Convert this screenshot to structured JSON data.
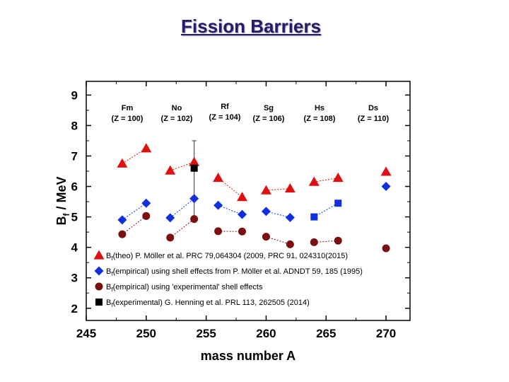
{
  "page": {
    "title": "Fission Barriers"
  },
  "chart_data": {
    "type": "scatter",
    "xlabel": "mass number A",
    "ylabel_main": "B",
    "ylabel_sub": "f",
    "ylabel_rest": " /  MeV",
    "xlim": [
      245,
      272
    ],
    "ylim": [
      1.6,
      9.45
    ],
    "xticks": [
      245,
      250,
      255,
      260,
      265,
      270
    ],
    "yticks": [
      2,
      3,
      4,
      5,
      6,
      7,
      8,
      9
    ],
    "elements": [
      {
        "name": "Fm",
        "z": "(Z = 100)",
        "x": 249.5
      },
      {
        "name": "No",
        "z": "(Z = 102)",
        "x": 254.2
      },
      {
        "name": "Rf",
        "z": "(Z = 104)",
        "x": 259.0
      },
      {
        "name": "Sg",
        "z": "(Z = 106)",
        "x": 264.0
      },
      {
        "name": "Hs",
        "z": "(Z = 108)",
        "x": 268.6
      },
      {
        "name": "Ds",
        "z": "(Z = 110)",
        "x": 273.2
      }
    ],
    "series": [
      {
        "name": "theo",
        "marker": "triangle",
        "color": "#e01010",
        "legend_prefix": "B",
        "legend_sub": "f",
        "legend_text": "(theo) P. Möller et al. PRC 79,064304 (2009, PRC 91, 024310(2015)",
        "groups": [
          [
            [
              248,
              6.75
            ],
            [
              250,
              7.25
            ]
          ],
          [
            [
              252,
              6.52
            ],
            [
              254,
              6.8
            ]
          ],
          [
            [
              256,
              6.28
            ],
            [
              258,
              5.65
            ]
          ],
          [
            [
              260,
              5.87
            ],
            [
              262,
              5.93
            ]
          ],
          [
            [
              264,
              6.15
            ],
            [
              266,
              6.28
            ]
          ],
          [
            [
              270,
              6.48
            ]
          ]
        ]
      },
      {
        "name": "empirical-shell",
        "marker": "diamond",
        "color": "#1030e0",
        "legend_prefix": "B",
        "legend_sub": "f",
        "legend_text": "(empirical) using shell effects from  P. Möller et al. ADNDT 59, 185 (1995)",
        "groups": [
          [
            [
              248,
              4.9
            ],
            [
              250,
              5.45
            ]
          ],
          [
            [
              252,
              4.97
            ],
            [
              254,
              5.6
            ]
          ],
          [
            [
              256,
              5.38
            ],
            [
              258,
              5.08
            ]
          ],
          [
            [
              260,
              5.18
            ],
            [
              262,
              4.98
            ]
          ],
          [
            [
              270,
              6.0
            ]
          ]
        ]
      },
      {
        "name": "empirical-exp-shell",
        "marker": "circle",
        "color": "#7a1010",
        "legend_prefix": "B",
        "legend_sub": "f",
        "legend_text": "(empirical) using 'experimental' shell effects",
        "groups": [
          [
            [
              248,
              4.43
            ],
            [
              250,
              5.03
            ]
          ],
          [
            [
              252,
              4.32
            ],
            [
              254,
              4.93
            ]
          ],
          [
            [
              256,
              4.53
            ],
            [
              258,
              4.52
            ]
          ],
          [
            [
              260,
              4.35
            ],
            [
              262,
              4.1
            ]
          ],
          [
            [
              264,
              4.17
            ],
            [
              266,
              4.22
            ]
          ],
          [
            [
              270,
              3.97
            ]
          ]
        ]
      },
      {
        "name": "blue-square",
        "marker": "square",
        "color": "#1030e0",
        "groups": [
          [
            [
              264,
              5.0
            ],
            [
              266,
              5.45
            ]
          ]
        ]
      },
      {
        "name": "experimental",
        "marker": "square",
        "color": "#000000",
        "legend_prefix": "B",
        "legend_sub": "f",
        "legend_text": "(experimental) G. Henning et al. PRL 113, 262505 (2014)",
        "groups": [
          [
            [
              254,
              6.6
            ]
          ]
        ],
        "error": {
          "x": 254,
          "low": 4.8,
          "high": 7.5
        }
      }
    ]
  }
}
